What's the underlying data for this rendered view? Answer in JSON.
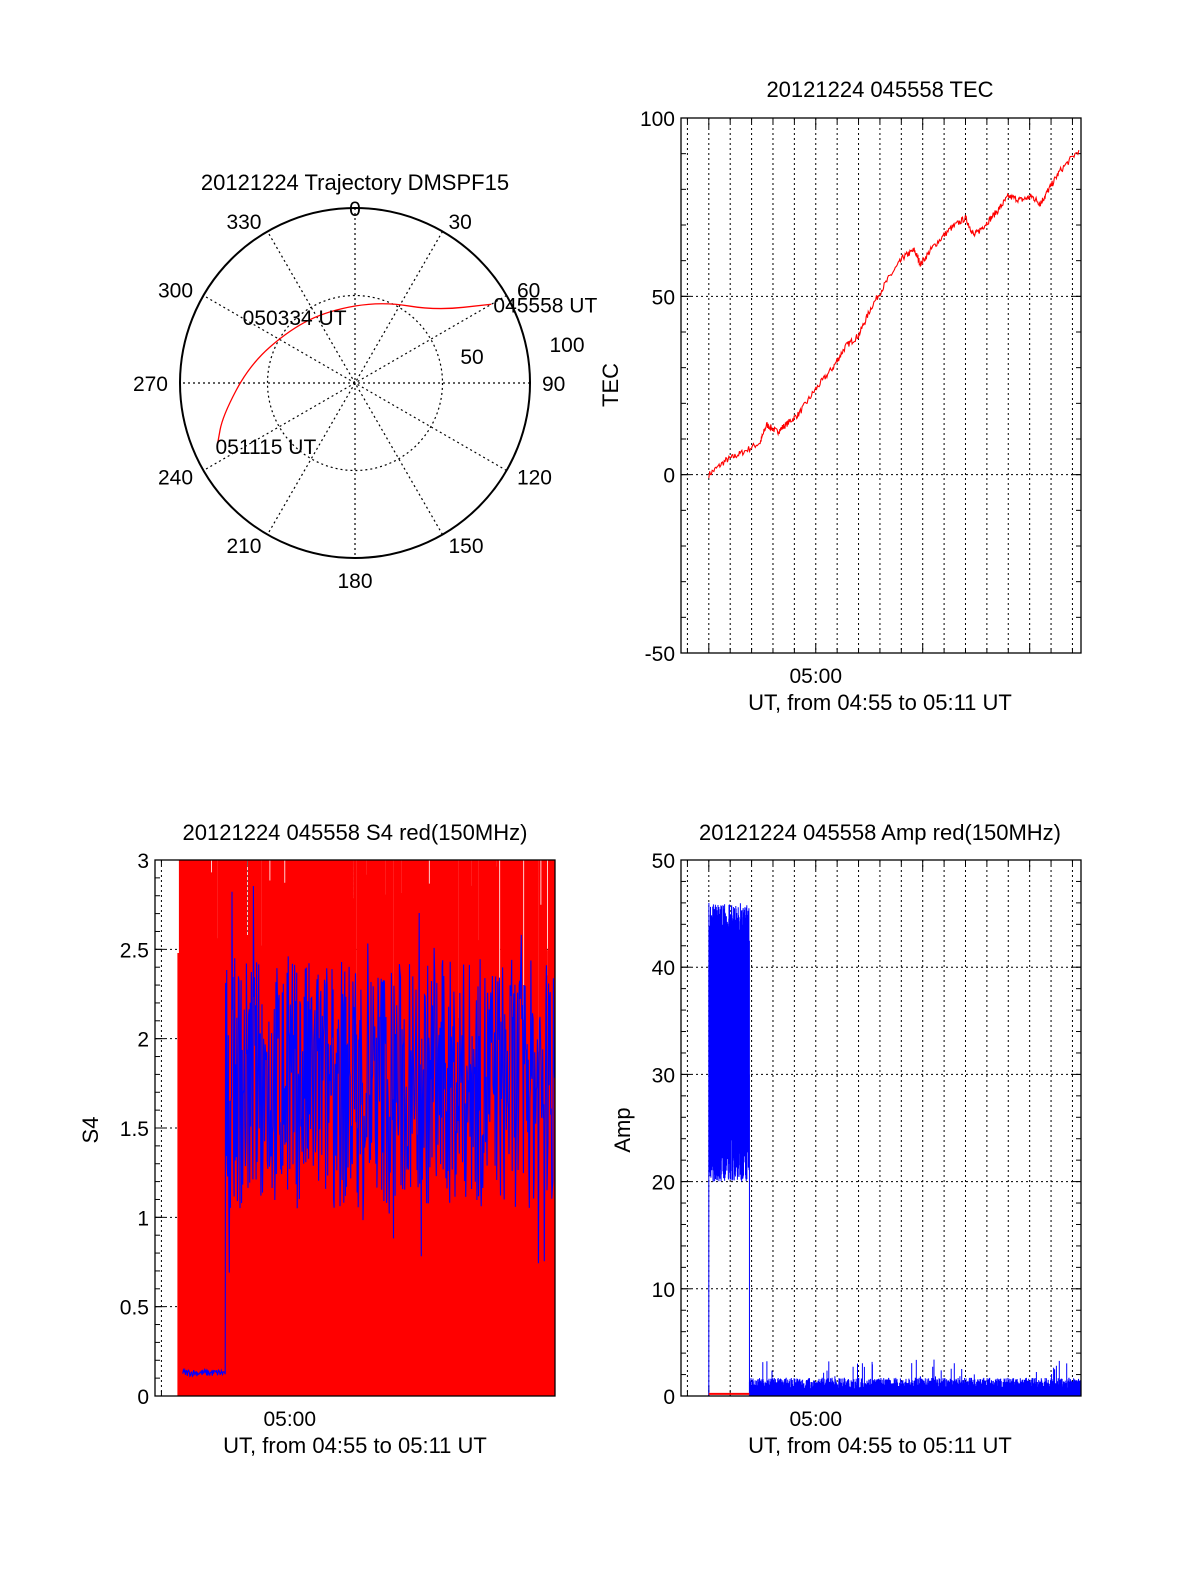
{
  "colors": {
    "red": "#ff0000",
    "blue": "#0000ff",
    "axis": "#000000",
    "grid": "#000000",
    "background": "#ffffff"
  },
  "chart_data": [
    {
      "id": "trajectory",
      "type": "scatter",
      "polar": true,
      "title": "20121224 Trajectory DMSPF15",
      "azimuth_labels": [
        "0",
        "30",
        "60",
        "90",
        "120",
        "150",
        "180",
        "210",
        "240",
        "270",
        "300",
        "330"
      ],
      "radial_labels": [
        "50",
        "100"
      ],
      "rlim": [
        0,
        100
      ],
      "grid": true,
      "series": [
        {
          "color": "#ff0000",
          "points": [
            {
              "az": 60,
              "r": 90
            },
            {
              "az": 48,
              "r": 62
            },
            {
              "az": 18,
              "r": 49
            },
            {
              "az": 340,
              "r": 44
            },
            {
              "az": 310,
              "r": 48
            },
            {
              "az": 280,
              "r": 61
            },
            {
              "az": 256,
              "r": 78
            },
            {
              "az": 246,
              "r": 86
            }
          ]
        }
      ],
      "annotations": [
        {
          "text": "045558 UT",
          "az": 60,
          "r": 90
        },
        {
          "text": "050334 UT",
          "az": 310,
          "r": 48
        },
        {
          "text": "051115 UT",
          "az": 246,
          "r": 86
        }
      ]
    },
    {
      "id": "tec",
      "type": "line",
      "title": "20121224 045558 TEC",
      "xlabel": "UT, from 04:55 to 05:11 UT",
      "ylabel": "TEC",
      "xtick_labels": [
        "05:00"
      ],
      "ytick_labels": [
        "-50",
        "0",
        "50",
        "100"
      ],
      "ylim": [
        -50,
        100
      ],
      "xlim_minutes": [
        -6.3,
        12.4
      ],
      "grid": true,
      "series": [
        {
          "color": "#ff0000",
          "x_minutes": [
            -5,
            -4.2,
            -3.5,
            -2.6,
            -2.3,
            -1.8,
            -1.4,
            -0.8,
            0,
            0.8,
            1.4,
            2.0,
            2.6,
            3.4,
            4.1,
            4.6,
            4.9,
            5.5,
            6.3,
            7.0,
            7.4,
            7.9,
            8.5,
            9.0,
            9.6,
            10.1,
            10.5,
            10.9,
            11.4,
            12.3
          ],
          "values": [
            0,
            4,
            6,
            9,
            14,
            12,
            14,
            17,
            24,
            30,
            36,
            39,
            47,
            55,
            61,
            63,
            59,
            64,
            69,
            72,
            67,
            70,
            74,
            78,
            77,
            78,
            76,
            80,
            85,
            91
          ]
        }
      ]
    },
    {
      "id": "s4",
      "type": "line",
      "title": "20121224 045558 S4 red(150MHz)",
      "xlabel": "UT, from 04:55 to 05:11 UT",
      "ylabel": "S4",
      "xtick_labels": [
        "05:00"
      ],
      "ytick_labels": [
        "0",
        "0.5",
        "1",
        "1.5",
        "2",
        "2.5",
        "3"
      ],
      "ylim": [
        0,
        3
      ],
      "xlim_minutes": [
        -6.3,
        12.4
      ],
      "grid": true,
      "series": [
        {
          "color": "#ff0000",
          "x_range_minutes": [
            -5.2,
            12.4
          ],
          "value_range": [
            0,
            3
          ]
        },
        {
          "color": "#0000ff",
          "x_range_minutes": [
            -5.0,
            12.4
          ],
          "value_range": [
            0.1,
            2.9
          ],
          "baseline_segment": {
            "x_minutes": [
              -5.0,
              -3.0
            ],
            "value": 0.13
          }
        }
      ]
    },
    {
      "id": "amp",
      "type": "line",
      "title": "20121224 045558 Amp red(150MHz)",
      "xlabel": "UT, from 04:55 to 05:11 UT",
      "ylabel": "Amp",
      "xtick_labels": [
        "05:00"
      ],
      "ytick_labels": [
        "0",
        "10",
        "20",
        "30",
        "40",
        "50"
      ],
      "ylim": [
        0,
        50
      ],
      "xlim_minutes": [
        -6.3,
        12.4
      ],
      "grid": true,
      "series": [
        {
          "color": "#0000ff",
          "burst": {
            "x_minutes": [
              -5.0,
              -3.1
            ],
            "value_range": [
              18,
              49
            ]
          },
          "baseline_value_range": [
            0.5,
            3.5
          ]
        },
        {
          "color": "#ff0000",
          "burst": {
            "x_minutes": [
              -5.0,
              -3.1
            ],
            "value": 0.2
          }
        }
      ]
    }
  ]
}
